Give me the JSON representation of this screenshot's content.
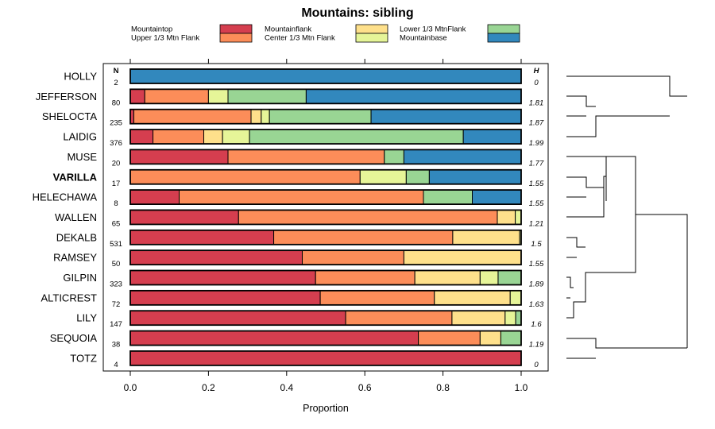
{
  "chart_data": {
    "type": "bar",
    "stacked": true,
    "orientation": "horizontal",
    "title": "Mountains: sibling",
    "xlabel": "Proportion",
    "xlim": [
      0,
      1
    ],
    "xticks": [
      "0.0",
      "0.2",
      "0.4",
      "0.6",
      "0.8",
      "1.0"
    ],
    "n_header": "N",
    "h_header": "H",
    "legend": [
      {
        "name": "Mountaintop",
        "color": "#d53e4f"
      },
      {
        "name": "Upper 1/3 Mtn Flank",
        "color": "#fc8d59"
      },
      {
        "name": "Mountainflank",
        "color": "#fee08b"
      },
      {
        "name": "Center 1/3 Mtn Flank",
        "color": "#e6f598"
      },
      {
        "name": "Lower 1/3 MtnFlank",
        "color": "#99d594"
      },
      {
        "name": "Mountainbase",
        "color": "#3288bd"
      }
    ],
    "rows": [
      {
        "label": "HOLLY",
        "bold": false,
        "n": "2",
        "h": "0",
        "values": [
          0,
          0,
          0,
          0,
          0,
          1.0
        ]
      },
      {
        "label": "JEFFERSON",
        "bold": false,
        "n": "80",
        "h": "1.81",
        "values": [
          0.037,
          0.163,
          0,
          0.05,
          0.2,
          0.55
        ]
      },
      {
        "label": "SHELOCTA",
        "bold": false,
        "n": "235",
        "h": "1.87",
        "values": [
          0.009,
          0.3,
          0.026,
          0.021,
          0.26,
          0.384
        ]
      },
      {
        "label": "LAIDIG",
        "bold": false,
        "n": "376",
        "h": "1.99",
        "values": [
          0.058,
          0.13,
          0.048,
          0.069,
          0.547,
          0.148
        ]
      },
      {
        "label": "MUSE",
        "bold": false,
        "n": "20",
        "h": "1.77",
        "values": [
          0.25,
          0.4,
          0,
          0,
          0.05,
          0.3
        ]
      },
      {
        "label": "VARILLA",
        "bold": true,
        "n": "17",
        "h": "1.55",
        "values": [
          0,
          0.588,
          0,
          0.118,
          0.059,
          0.235
        ]
      },
      {
        "label": "HELECHAWA",
        "bold": false,
        "n": "8",
        "h": "1.55",
        "values": [
          0.125,
          0.625,
          0,
          0,
          0.125,
          0.125
        ]
      },
      {
        "label": "WALLEN",
        "bold": false,
        "n": "65",
        "h": "1.21",
        "values": [
          0.277,
          0.662,
          0.046,
          0.015,
          0,
          0
        ]
      },
      {
        "label": "DEKALB",
        "bold": false,
        "n": "531",
        "h": "1.5",
        "values": [
          0.367,
          0.458,
          0.171,
          0.004,
          0,
          0
        ]
      },
      {
        "label": "RAMSEY",
        "bold": false,
        "n": "50",
        "h": "1.55",
        "values": [
          0.44,
          0.26,
          0.3,
          0,
          0,
          0
        ]
      },
      {
        "label": "GILPIN",
        "bold": false,
        "n": "323",
        "h": "1.89",
        "values": [
          0.474,
          0.254,
          0.167,
          0.046,
          0.059,
          0
        ]
      },
      {
        "label": "ALTICREST",
        "bold": false,
        "n": "72",
        "h": "1.63",
        "values": [
          0.486,
          0.292,
          0.194,
          0.028,
          0,
          0
        ]
      },
      {
        "label": "LILY",
        "bold": false,
        "n": "147",
        "h": "1.6",
        "values": [
          0.551,
          0.272,
          0.136,
          0.027,
          0.014,
          0
        ]
      },
      {
        "label": "SEQUOIA",
        "bold": false,
        "n": "38",
        "h": "1.19",
        "values": [
          0.737,
          0.158,
          0.053,
          0,
          0.052,
          0
        ]
      },
      {
        "label": "TOTZ",
        "bold": false,
        "n": "4",
        "h": "0",
        "values": [
          1.0,
          0,
          0,
          0,
          0,
          0
        ]
      }
    ]
  }
}
